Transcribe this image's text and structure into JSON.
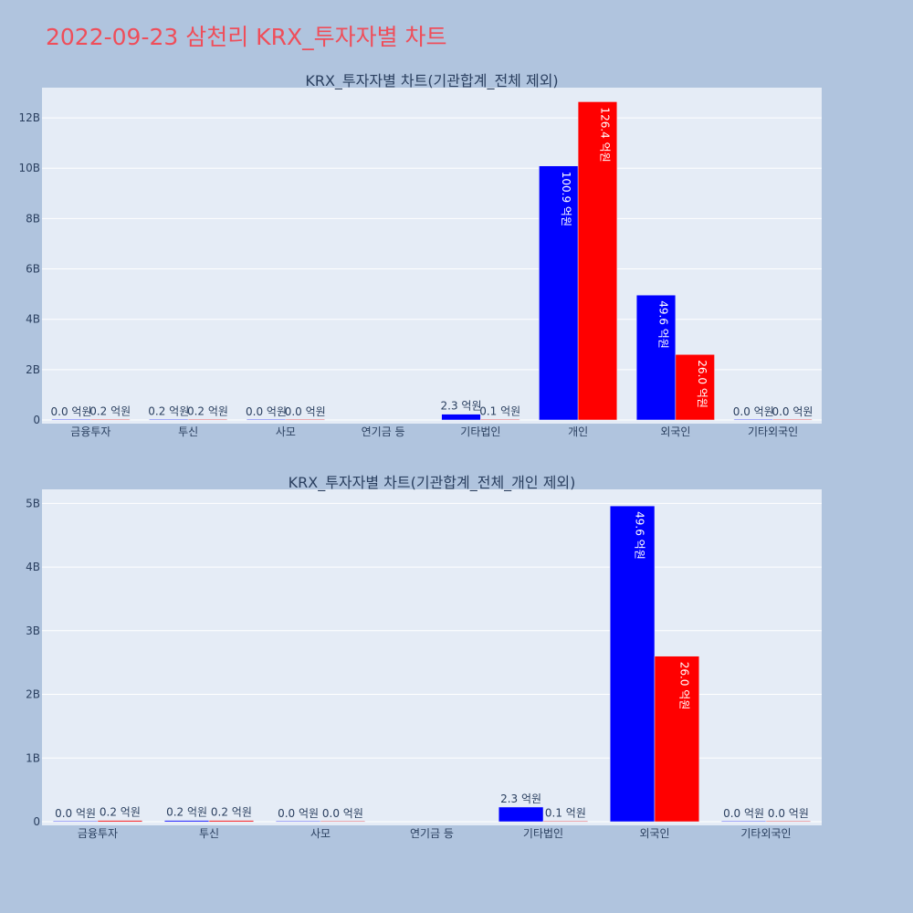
{
  "title": "2022-09-23 삼천리 KRX_투자자별 차트",
  "colors": {
    "series1": "#0000ff",
    "series2": "#ff0000",
    "plot_bg": "#e5ecf6",
    "page_bg": "#b0c4de",
    "title": "#ef4e5a"
  },
  "chart_data": [
    {
      "type": "bar",
      "title": "KRX_투자자별 차트(기관합계_전체 제외)",
      "categories": [
        "금융투자",
        "투신",
        "사모",
        "연기금 등",
        "기타법인",
        "개인",
        "외국인",
        "기타외국인"
      ],
      "yticks": [
        0,
        2,
        4,
        6,
        8,
        10,
        12
      ],
      "ytick_labels": [
        "0",
        "2B",
        "4B",
        "6B",
        "8B",
        "10B",
        "12B"
      ],
      "ylim": [
        0,
        13.2
      ],
      "grid": true,
      "series": [
        {
          "values": [
            0.0,
            0.02,
            0.0,
            null,
            0.23,
            10.09,
            4.96,
            0.0
          ],
          "labels": [
            "0.0 억원",
            "0.2 억원",
            "0.0 억원",
            "",
            "2.3 억원",
            "100.9 억원",
            "49.6 억원",
            "0.0 억원"
          ]
        },
        {
          "values": [
            0.02,
            0.02,
            0.0,
            null,
            0.01,
            12.64,
            2.6,
            0.0
          ],
          "labels": [
            "0.2 억원",
            "0.2 억원",
            "0.0 억원",
            "",
            "0.1 억원",
            "126.4 억원",
            "26.0 억원",
            "0.0 억원"
          ]
        }
      ]
    },
    {
      "type": "bar",
      "title": "KRX_투자자별 차트(기관합계_전체_개인 제외)",
      "categories": [
        "금융투자",
        "투신",
        "사모",
        "연기금 등",
        "기타법인",
        "외국인",
        "기타외국인"
      ],
      "yticks": [
        0,
        1,
        2,
        3,
        4,
        5
      ],
      "ytick_labels": [
        "0",
        "1B",
        "2B",
        "3B",
        "4B",
        "5B"
      ],
      "ylim": [
        0,
        5.22
      ],
      "grid": true,
      "series": [
        {
          "values": [
            0.0,
            0.02,
            0.0,
            null,
            0.23,
            4.96,
            0.0
          ],
          "labels": [
            "0.0 억원",
            "0.2 억원",
            "0.0 억원",
            "",
            "2.3 억원",
            "49.6 억원",
            "0.0 억원"
          ]
        },
        {
          "values": [
            0.02,
            0.02,
            0.0,
            null,
            0.01,
            2.6,
            0.0
          ],
          "labels": [
            "0.2 억원",
            "0.2 억원",
            "0.0 억원",
            "",
            "0.1 억원",
            "26.0 억원",
            "0.0 억원"
          ]
        }
      ]
    }
  ]
}
